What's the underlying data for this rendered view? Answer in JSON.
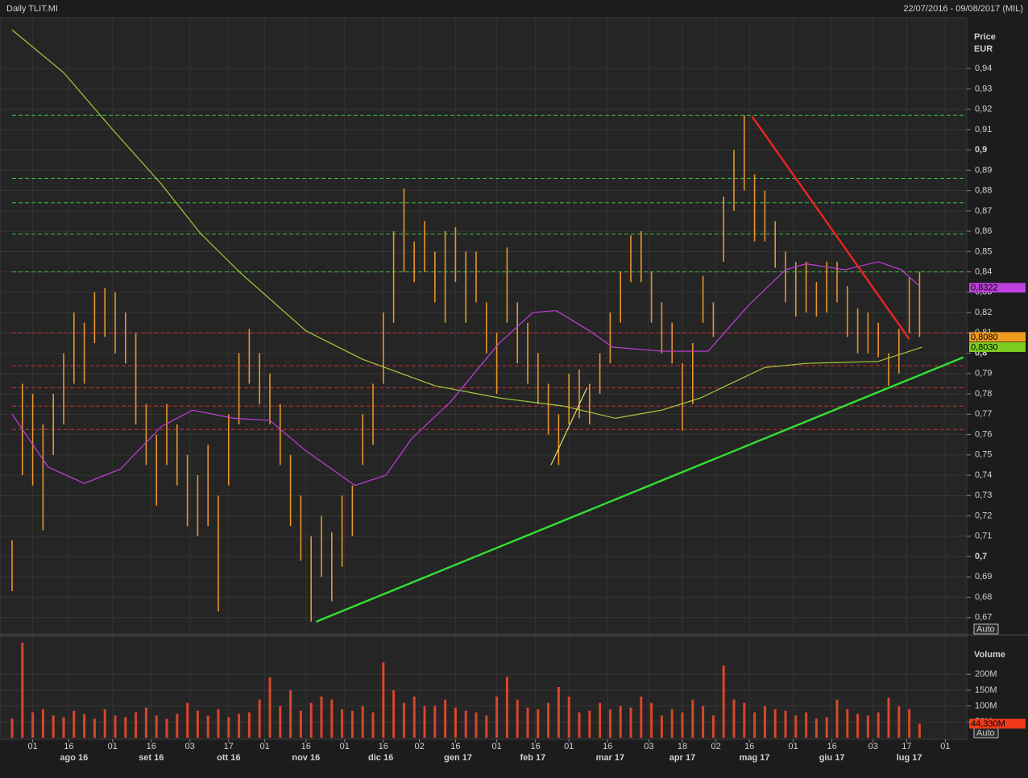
{
  "chart_data": [
    {
      "type": "ohlc",
      "title": "Daily TLIT.MI",
      "subtitle": "22/07/2016 - 09/08/2017 (MIL)",
      "ylabel": "Price",
      "yunit": "EUR",
      "scale_button": "Auto",
      "xlim": [
        0,
        370
      ],
      "ylim": [
        0.662,
        0.965
      ],
      "yticks": [
        {
          "value": 0.67,
          "label": "0,67"
        },
        {
          "value": 0.68,
          "label": "0,68"
        },
        {
          "value": 0.69,
          "label": "0,69"
        },
        {
          "value": 0.7,
          "label": "0,7"
        },
        {
          "value": 0.71,
          "label": "0,71"
        },
        {
          "value": 0.72,
          "label": "0,72"
        },
        {
          "value": 0.73,
          "label": "0,73"
        },
        {
          "value": 0.74,
          "label": "0,74"
        },
        {
          "value": 0.75,
          "label": "0,75"
        },
        {
          "value": 0.76,
          "label": "0,76"
        },
        {
          "value": 0.77,
          "label": "0,77"
        },
        {
          "value": 0.78,
          "label": "0,78"
        },
        {
          "value": 0.79,
          "label": "0,79"
        },
        {
          "value": 0.8,
          "label": "0,8"
        },
        {
          "value": 0.81,
          "label": "0,81"
        },
        {
          "value": 0.82,
          "label": "0,82"
        },
        {
          "value": 0.83,
          "label": "0,83"
        },
        {
          "value": 0.84,
          "label": "0,84"
        },
        {
          "value": 0.85,
          "label": "0,85"
        },
        {
          "value": 0.86,
          "label": "0,86"
        },
        {
          "value": 0.87,
          "label": "0,87"
        },
        {
          "value": 0.88,
          "label": "0,88"
        },
        {
          "value": 0.89,
          "label": "0,89"
        },
        {
          "value": 0.9,
          "label": "0,9"
        },
        {
          "value": 0.91,
          "label": "0,91"
        },
        {
          "value": 0.92,
          "label": "0,92"
        },
        {
          "value": 0.93,
          "label": "0,93"
        },
        {
          "value": 0.94,
          "label": "0,94"
        }
      ],
      "grid": true,
      "color": "#e8952b",
      "x": [
        0,
        4,
        8,
        12,
        16,
        20,
        24,
        28,
        32,
        36,
        40,
        44,
        48,
        52,
        56,
        60,
        64,
        68,
        72,
        76,
        80,
        84,
        88,
        92,
        96,
        100,
        104,
        108,
        112,
        116,
        120,
        124,
        128,
        132,
        136,
        140,
        144,
        148,
        152,
        156,
        160,
        164,
        168,
        172,
        176,
        180,
        184,
        188,
        192,
        196,
        200,
        204,
        208,
        212,
        216,
        220,
        224,
        228,
        232,
        236,
        240,
        244,
        248,
        252,
        256,
        260,
        264,
        268,
        272,
        276,
        280,
        284,
        288,
        292,
        296,
        300,
        304,
        308,
        312,
        316,
        320,
        324,
        328,
        332,
        336,
        340,
        344,
        348,
        352
      ],
      "high": [
        0.708,
        0.785,
        0.78,
        0.765,
        0.78,
        0.8,
        0.82,
        0.815,
        0.83,
        0.832,
        0.83,
        0.82,
        0.81,
        0.775,
        0.76,
        0.775,
        0.765,
        0.75,
        0.74,
        0.755,
        0.73,
        0.77,
        0.8,
        0.812,
        0.8,
        0.79,
        0.775,
        0.75,
        0.73,
        0.71,
        0.72,
        0.712,
        0.73,
        0.735,
        0.77,
        0.785,
        0.82,
        0.86,
        0.881,
        0.855,
        0.865,
        0.85,
        0.86,
        0.862,
        0.85,
        0.85,
        0.825,
        0.81,
        0.852,
        0.825,
        0.815,
        0.8,
        0.785,
        0.77,
        0.79,
        0.792,
        0.785,
        0.8,
        0.82,
        0.84,
        0.858,
        0.86,
        0.84,
        0.825,
        0.815,
        0.795,
        0.805,
        0.838,
        0.825,
        0.877,
        0.9,
        0.917,
        0.888,
        0.88,
        0.865,
        0.85,
        0.845,
        0.845,
        0.835,
        0.845,
        0.845,
        0.833,
        0.822,
        0.82,
        0.815,
        0.8,
        0.812,
        0.837,
        0.84
      ],
      "low": [
        0.683,
        0.74,
        0.735,
        0.713,
        0.75,
        0.765,
        0.785,
        0.785,
        0.805,
        0.808,
        0.8,
        0.795,
        0.765,
        0.745,
        0.725,
        0.745,
        0.735,
        0.715,
        0.71,
        0.715,
        0.673,
        0.735,
        0.765,
        0.785,
        0.775,
        0.765,
        0.745,
        0.715,
        0.698,
        0.668,
        0.69,
        0.678,
        0.695,
        0.71,
        0.745,
        0.755,
        0.785,
        0.815,
        0.84,
        0.835,
        0.84,
        0.825,
        0.815,
        0.835,
        0.815,
        0.825,
        0.8,
        0.78,
        0.815,
        0.795,
        0.785,
        0.775,
        0.76,
        0.745,
        0.765,
        0.768,
        0.765,
        0.78,
        0.795,
        0.815,
        0.835,
        0.835,
        0.815,
        0.8,
        0.795,
        0.762,
        0.775,
        0.815,
        0.808,
        0.845,
        0.87,
        0.88,
        0.855,
        0.855,
        0.842,
        0.825,
        0.818,
        0.82,
        0.818,
        0.82,
        0.825,
        0.808,
        0.8,
        0.8,
        0.798,
        0.784,
        0.79,
        0.81,
        0.808
      ],
      "lines": [
        {
          "color": "#a8c83a",
          "x": [
            0,
            20,
            39,
            58,
            73,
            89,
            114,
            136,
            164,
            189,
            214,
            234,
            252,
            267,
            292,
            308,
            336,
            353
          ],
          "values": [
            0.959,
            0.938,
            0.91,
            0.883,
            0.859,
            0.839,
            0.811,
            0.797,
            0.784,
            0.778,
            0.774,
            0.768,
            0.772,
            0.778,
            0.793,
            0.795,
            0.796,
            0.803
          ]
        },
        {
          "color": "#c040d8",
          "x": [
            0,
            14,
            28,
            42,
            58,
            70,
            86,
            100,
            114,
            133,
            145,
            155,
            170,
            189,
            202,
            211,
            224,
            233,
            252,
            270,
            286,
            300,
            308,
            323,
            336,
            345,
            352
          ],
          "values": [
            0.77,
            0.744,
            0.736,
            0.743,
            0.764,
            0.772,
            0.768,
            0.767,
            0.752,
            0.735,
            0.74,
            0.758,
            0.776,
            0.805,
            0.82,
            0.821,
            0.811,
            0.803,
            0.801,
            0.801,
            0.824,
            0.841,
            0.844,
            0.841,
            0.845,
            0.841,
            0.833
          ]
        }
      ],
      "trendlines": [
        {
          "color": "#33e033",
          "x": [
            118,
            369
          ],
          "values": [
            0.668,
            0.798
          ]
        },
        {
          "color": "#ee2222",
          "x": [
            287,
            348
          ],
          "values": [
            0.9165,
            0.807
          ]
        },
        {
          "color": "#e8e060",
          "x": [
            209,
            223
          ],
          "values": [
            0.745,
            0.783
          ]
        }
      ],
      "levels": [
        {
          "value": 0.917,
          "color": "#3cbf3c"
        },
        {
          "value": 0.886,
          "color": "#3cbf3c"
        },
        {
          "value": 0.874,
          "color": "#3cbf3c"
        },
        {
          "value": 0.8586,
          "color": "#3cbf3c"
        },
        {
          "value": 0.84,
          "color": "#3cbf3c"
        },
        {
          "value": 0.81,
          "color": "#c83030"
        },
        {
          "value": 0.7939,
          "color": "#c83030"
        },
        {
          "value": 0.783,
          "color": "#c83030"
        },
        {
          "value": 0.774,
          "color": "#c83030"
        },
        {
          "value": 0.7625,
          "color": "#c83030"
        }
      ],
      "last_values": [
        {
          "value": 0.8322,
          "label": "0,8322",
          "color": "#c040e0"
        },
        {
          "value": 0.808,
          "label": "0,8080",
          "color": "#f09a20"
        },
        {
          "value": 0.803,
          "label": "0,8030",
          "color": "#7ccc22"
        }
      ]
    },
    {
      "type": "bar",
      "ylabel": "Volume",
      "scale_button": "Auto",
      "color": "#d8462a",
      "xlim": [
        0,
        370
      ],
      "ylim": [
        0,
        320
      ],
      "yticks": [
        {
          "value": 50,
          "label": "50M"
        },
        {
          "value": 100,
          "label": "100M"
        },
        {
          "value": 150,
          "label": "150M"
        },
        {
          "value": 200,
          "label": "200M"
        }
      ],
      "xticks": [
        {
          "value": 8,
          "label": "01"
        },
        {
          "value": 22,
          "label": "16"
        },
        {
          "value": 39,
          "label": "01"
        },
        {
          "value": 54,
          "label": "16"
        },
        {
          "value": 69,
          "label": "03"
        },
        {
          "value": 84,
          "label": "17"
        },
        {
          "value": 98,
          "label": "01"
        },
        {
          "value": 114,
          "label": "16"
        },
        {
          "value": 129,
          "label": "01"
        },
        {
          "value": 144,
          "label": "16"
        },
        {
          "value": 158,
          "label": "02"
        },
        {
          "value": 172,
          "label": "16"
        },
        {
          "value": 188,
          "label": "01"
        },
        {
          "value": 203,
          "label": "16"
        },
        {
          "value": 216,
          "label": "01"
        },
        {
          "value": 231,
          "label": "16"
        },
        {
          "value": 247,
          "label": "03"
        },
        {
          "value": 260,
          "label": "18"
        },
        {
          "value": 273,
          "label": "02"
        },
        {
          "value": 286,
          "label": "16"
        },
        {
          "value": 303,
          "label": "01"
        },
        {
          "value": 318,
          "label": "16"
        },
        {
          "value": 334,
          "label": "03"
        },
        {
          "value": 347,
          "label": "17"
        },
        {
          "value": 362,
          "label": "01"
        }
      ],
      "month_labels": [
        {
          "value": 24,
          "label": "ago 16"
        },
        {
          "value": 54,
          "label": "set 16"
        },
        {
          "value": 84,
          "label": "ott 16"
        },
        {
          "value": 114,
          "label": "nov 16"
        },
        {
          "value": 143,
          "label": "dic 16"
        },
        {
          "value": 173,
          "label": "gen 17"
        },
        {
          "value": 202,
          "label": "feb 17"
        },
        {
          "value": 232,
          "label": "mar 17"
        },
        {
          "value": 260,
          "label": "apr 17"
        },
        {
          "value": 288,
          "label": "mag 17"
        },
        {
          "value": 318,
          "label": "giu 17"
        },
        {
          "value": 348,
          "label": "lug 17"
        }
      ],
      "x": [
        0,
        4,
        8,
        12,
        16,
        20,
        24,
        28,
        32,
        36,
        40,
        44,
        48,
        52,
        56,
        60,
        64,
        68,
        72,
        76,
        80,
        84,
        88,
        92,
        96,
        100,
        104,
        108,
        112,
        116,
        120,
        124,
        128,
        132,
        136,
        140,
        144,
        148,
        152,
        156,
        160,
        164,
        168,
        172,
        176,
        180,
        184,
        188,
        192,
        196,
        200,
        204,
        208,
        212,
        216,
        220,
        224,
        228,
        232,
        236,
        240,
        244,
        248,
        252,
        256,
        260,
        264,
        268,
        272,
        276,
        280,
        284,
        288,
        292,
        296,
        300,
        304,
        308,
        312,
        316,
        320,
        324,
        328,
        332,
        336,
        340,
        344,
        348,
        352
      ],
      "values": [
        60,
        300,
        80,
        90,
        70,
        65,
        85,
        75,
        60,
        90,
        70,
        65,
        80,
        95,
        70,
        60,
        75,
        110,
        85,
        70,
        90,
        65,
        75,
        80,
        120,
        190,
        100,
        150,
        85,
        110,
        130,
        120,
        90,
        85,
        100,
        80,
        238,
        150,
        110,
        130,
        100,
        100,
        120,
        95,
        85,
        80,
        70,
        130,
        192,
        120,
        95,
        90,
        110,
        160,
        130,
        80,
        85,
        110,
        90,
        100,
        95,
        130,
        110,
        70,
        90,
        80,
        120,
        100,
        70,
        228,
        120,
        110,
        80,
        100,
        90,
        85,
        70,
        80,
        60,
        65,
        120,
        90,
        75,
        70,
        80,
        126,
        100,
        90,
        44.33
      ],
      "last_value": {
        "value": 44.33,
        "label": "44,330M",
        "color": "#f03a1a"
      }
    }
  ]
}
